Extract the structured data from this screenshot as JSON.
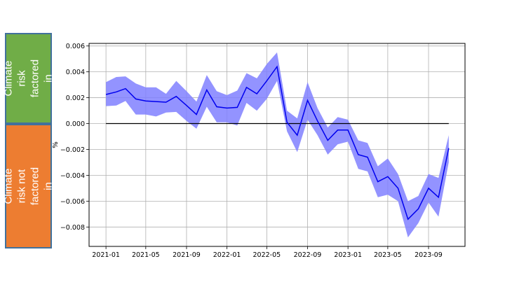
{
  "labels": {
    "positive_box": "Climate risk factored in",
    "negative_box": "Climate risk not factored in"
  },
  "colors": {
    "positive_box": "#70ad47",
    "negative_box": "#ed7d31",
    "line": "#0000ee",
    "band": "#8080ff",
    "zero_line": "#000000"
  },
  "chart_data": {
    "type": "line",
    "title": "",
    "xlabel": "",
    "ylabel": "%",
    "grid": true,
    "x_ticks": [
      "2021-01",
      "2021-05",
      "2021-09",
      "2022-01",
      "2022-05",
      "2022-09",
      "2023-01",
      "2023-05",
      "2023-09"
    ],
    "y_ticks": [
      "0.006",
      "0.004",
      "0.002",
      "0.000",
      "−0.002",
      "−0.004",
      "−0.006",
      "−0.008"
    ],
    "y_tick_values": [
      0.006,
      0.004,
      0.002,
      0.0,
      -0.002,
      -0.004,
      -0.006,
      -0.008
    ],
    "xlim": [
      "2020-11-11",
      "2023-12-20"
    ],
    "ylim": [
      -0.0095,
      0.0062
    ],
    "x": [
      "2021-01",
      "2021-02",
      "2021-03",
      "2021-04",
      "2021-05",
      "2021-06",
      "2021-07",
      "2021-08",
      "2021-09",
      "2021-10",
      "2021-11",
      "2021-12",
      "2022-01",
      "2022-02",
      "2022-03",
      "2022-04",
      "2022-05",
      "2022-06",
      "2022-07",
      "2022-08",
      "2022-09",
      "2022-10",
      "2022-11",
      "2022-12",
      "2023-01",
      "2023-02",
      "2023-03",
      "2023-04",
      "2023-05",
      "2023-06",
      "2023-07",
      "2023-08",
      "2023-09",
      "2023-10",
      "2023-11"
    ],
    "series": [
      {
        "values": [
          0.00225,
          0.00245,
          0.0027,
          0.0019,
          0.00175,
          0.0017,
          0.00165,
          0.0021,
          0.0014,
          0.0007,
          0.0026,
          0.0013,
          0.0012,
          0.00125,
          0.0028,
          0.0023,
          0.0033,
          0.0044,
          0.0001,
          -0.0009,
          0.0018,
          0.0002,
          -0.0013,
          -0.0005,
          -0.0005,
          -0.0024,
          -0.0026,
          -0.0045,
          -0.0041,
          -0.005,
          -0.0074,
          -0.0066,
          -0.005,
          -0.0057,
          -0.0019
        ],
        "lower": [
          0.00135,
          0.0014,
          0.00175,
          0.0007,
          0.0007,
          0.00055,
          0.00085,
          0.0009,
          0.0002,
          -0.0004,
          0.0013,
          0.0001,
          0.0001,
          -0.00015,
          0.0016,
          0.001,
          0.0019,
          0.0033,
          -0.0006,
          -0.0022,
          0.0003,
          -0.0009,
          -0.0024,
          -0.0016,
          -0.0014,
          -0.0035,
          -0.0037,
          -0.0057,
          -0.0055,
          -0.006,
          -0.0088,
          -0.0077,
          -0.0061,
          -0.0072,
          -0.003
        ],
        "upper": [
          0.0032,
          0.0036,
          0.00365,
          0.0031,
          0.0028,
          0.0028,
          0.0023,
          0.0033,
          0.0025,
          0.0017,
          0.00375,
          0.0025,
          0.0022,
          0.00255,
          0.0039,
          0.0035,
          0.0046,
          0.0055,
          0.001,
          0.0004,
          0.0032,
          0.0012,
          -0.0003,
          0.0005,
          0.0003,
          -0.0013,
          -0.0015,
          -0.0033,
          -0.0027,
          -0.0039,
          -0.006,
          -0.0056,
          -0.0039,
          -0.0042,
          -0.0009
        ]
      }
    ],
    "zero_line": {
      "from": "2021-01",
      "to": "2023-11",
      "y": 0
    }
  }
}
